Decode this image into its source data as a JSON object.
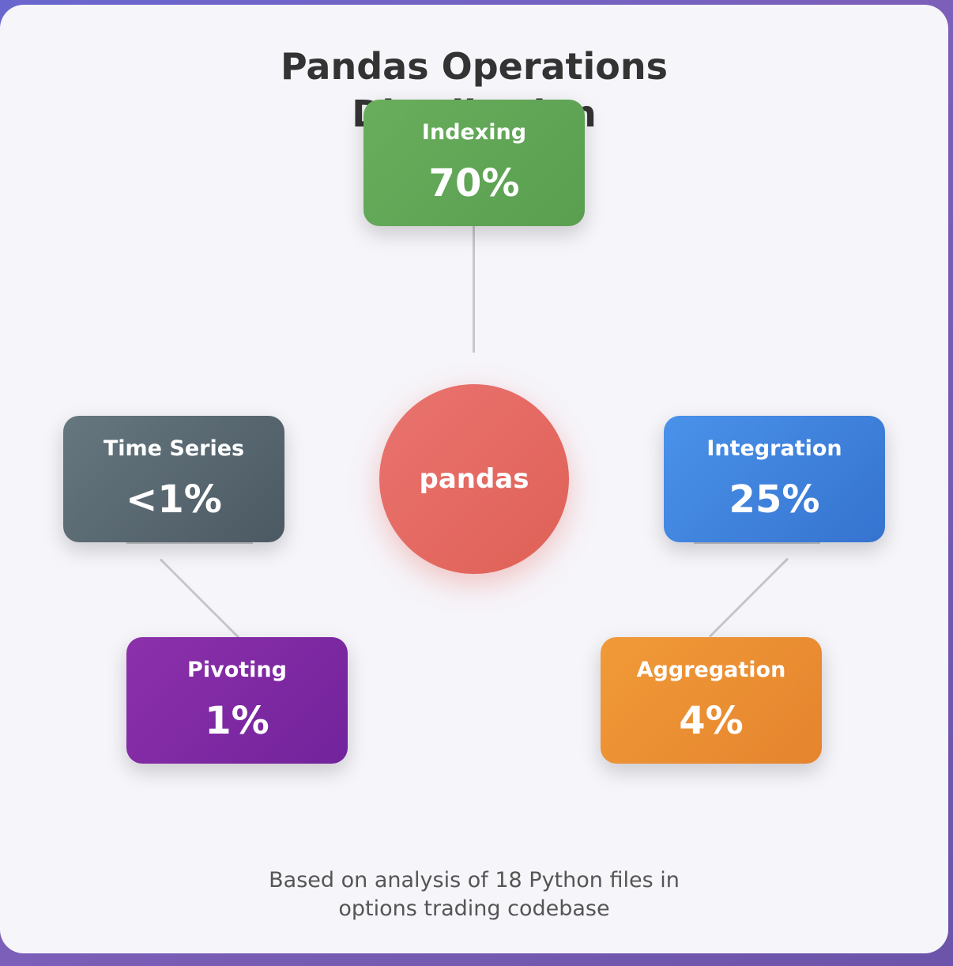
{
  "title": "Pandas Operations Distribution",
  "center": {
    "label": "pandas",
    "color": "#e66a62"
  },
  "nodes": [
    {
      "id": "indexing",
      "label": "Indexing",
      "value": "70%",
      "color": "#5ea553"
    },
    {
      "id": "integration",
      "label": "Integration",
      "value": "25%",
      "color": "#3a7fd9"
    },
    {
      "id": "aggregation",
      "label": "Aggregation",
      "value": "4%",
      "color": "#eb8f30"
    },
    {
      "id": "pivoting",
      "label": "Pivoting",
      "value": "1%",
      "color": "#7f2aa3"
    },
    {
      "id": "time-series",
      "label": "Time Series",
      "value": "<1%",
      "color": "#56666f"
    }
  ],
  "footer": "Based on analysis of 18 Python files in options trading codebase"
}
